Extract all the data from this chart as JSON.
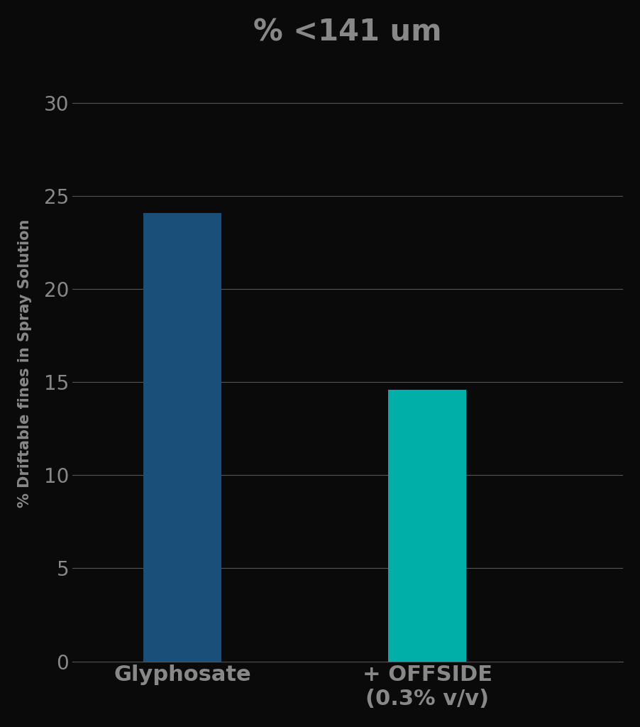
{
  "title": "% <141 um",
  "categories": [
    "Glyphosate",
    "+ OFFSIDE\n(0.3% v/v)"
  ],
  "values": [
    24.1,
    14.6
  ],
  "bar_colors": [
    "#1a4f7a",
    "#00b0a8"
  ],
  "ylabel": "% Driftable fines in Spray Solution",
  "ylim": [
    0,
    32
  ],
  "yticks": [
    0,
    5,
    10,
    15,
    20,
    25,
    30
  ],
  "background_color": "#0a0a0a",
  "text_color": "#888888",
  "grid_color": "#555555",
  "title_fontsize": 30,
  "axis_label_fontsize": 15,
  "tick_fontsize": 20,
  "xtick_fontsize": 22,
  "bar_width": 0.32
}
